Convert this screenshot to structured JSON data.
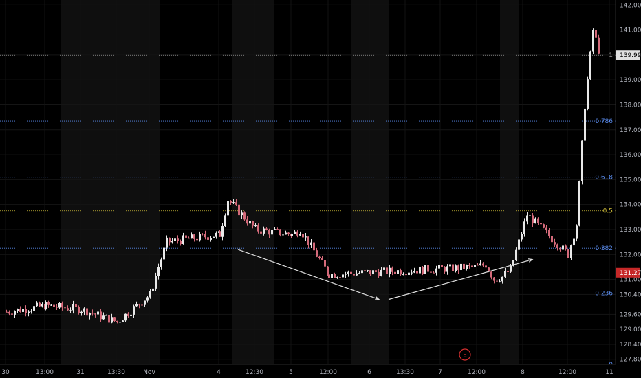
{
  "chart_data": {
    "type": "candlestick",
    "y_axis": {
      "ticks": [
        127.8,
        128.4,
        129.0,
        129.6,
        130.4,
        131.0,
        132.0,
        133.0,
        134.0,
        135.0,
        136.0,
        137.0,
        138.0,
        139.0,
        140.0,
        141.0,
        142.0
      ],
      "tick_labels": [
        "127.80",
        "128.40",
        "129.00",
        "129.60",
        "130.40",
        "131.00",
        "132.00",
        "133.00",
        "134.00",
        "135.00",
        "136.00",
        "137.00",
        "138.00",
        "139.00",
        "140.00",
        "141.00",
        "142.00"
      ],
      "range": [
        127.6,
        142.2
      ]
    },
    "x_axis": {
      "tick_labels": [
        "30",
        "13:00",
        "31",
        "13:30",
        "Nov",
        "4",
        "12:30",
        "5",
        "12:00",
        "6",
        "13:30",
        "7",
        "12:00",
        "8",
        "12:00",
        "11"
      ]
    },
    "fib_levels": [
      {
        "label": "1",
        "value": 139.99,
        "color": "#9e9e9e"
      },
      {
        "label": "0.786",
        "value": 137.35,
        "color": "#5b8def"
      },
      {
        "label": "0.618",
        "value": 135.1,
        "color": "#5b8def"
      },
      {
        "label": "0.5",
        "value": 133.75,
        "color": "#d4c13a"
      },
      {
        "label": "0.382",
        "value": 132.25,
        "color": "#5b8def"
      },
      {
        "label": "0.236",
        "value": 130.45,
        "color": "#5b8def"
      },
      {
        "label": "0",
        "value": 127.6,
        "color": "#5b8def"
      }
    ],
    "price_tags": [
      {
        "label": "139.99",
        "value": 139.99,
        "bg": "#e0e0e0",
        "fg": "#000000"
      },
      {
        "label": "131.27",
        "value": 131.27,
        "bg": "#c62828",
        "fg": "#ffffff"
      }
    ],
    "trend_lines": [
      {
        "from": [
          "4",
          132.2
        ],
        "to": [
          "6",
          130.2
        ]
      },
      {
        "from": [
          "6",
          130.2
        ],
        "to": [
          "8",
          131.8
        ]
      }
    ],
    "series": [
      {
        "x": "30",
        "close": 129.7
      },
      {
        "x": "13:00",
        "close": 129.95
      },
      {
        "x": "31",
        "close": 129.8
      },
      {
        "x": "13:30",
        "close": 129.3
      },
      {
        "x": "Nov",
        "close": 130.4
      },
      {
        "x": "Nov",
        "close": 131.5
      },
      {
        "x": "Nov",
        "close": 132.5
      },
      {
        "x": "4",
        "close": 132.8
      },
      {
        "x": "4",
        "close": 134.2
      },
      {
        "x": "12:30",
        "close": 133.0
      },
      {
        "x": "5",
        "close": 132.8
      },
      {
        "x": "5",
        "close": 133.0
      },
      {
        "x": "12:00",
        "close": 131.2
      },
      {
        "x": "12:00",
        "close": 131.5
      },
      {
        "x": "6",
        "close": 131.6
      },
      {
        "x": "6",
        "close": 131.0
      },
      {
        "x": "13:30",
        "close": 131.1
      },
      {
        "x": "13:30",
        "close": 131.4
      },
      {
        "x": "7",
        "close": 132.5
      },
      {
        "x": "7",
        "close": 133.6
      },
      {
        "x": "12:00",
        "close": 132.0
      },
      {
        "x": "12:00",
        "close": 133.2
      },
      {
        "x": "12:00",
        "close": 138.0
      },
      {
        "x": "12:00",
        "close": 141.0
      },
      {
        "x": "8",
        "close": 139.8
      }
    ],
    "earnings_marker": "E",
    "grid": true
  }
}
